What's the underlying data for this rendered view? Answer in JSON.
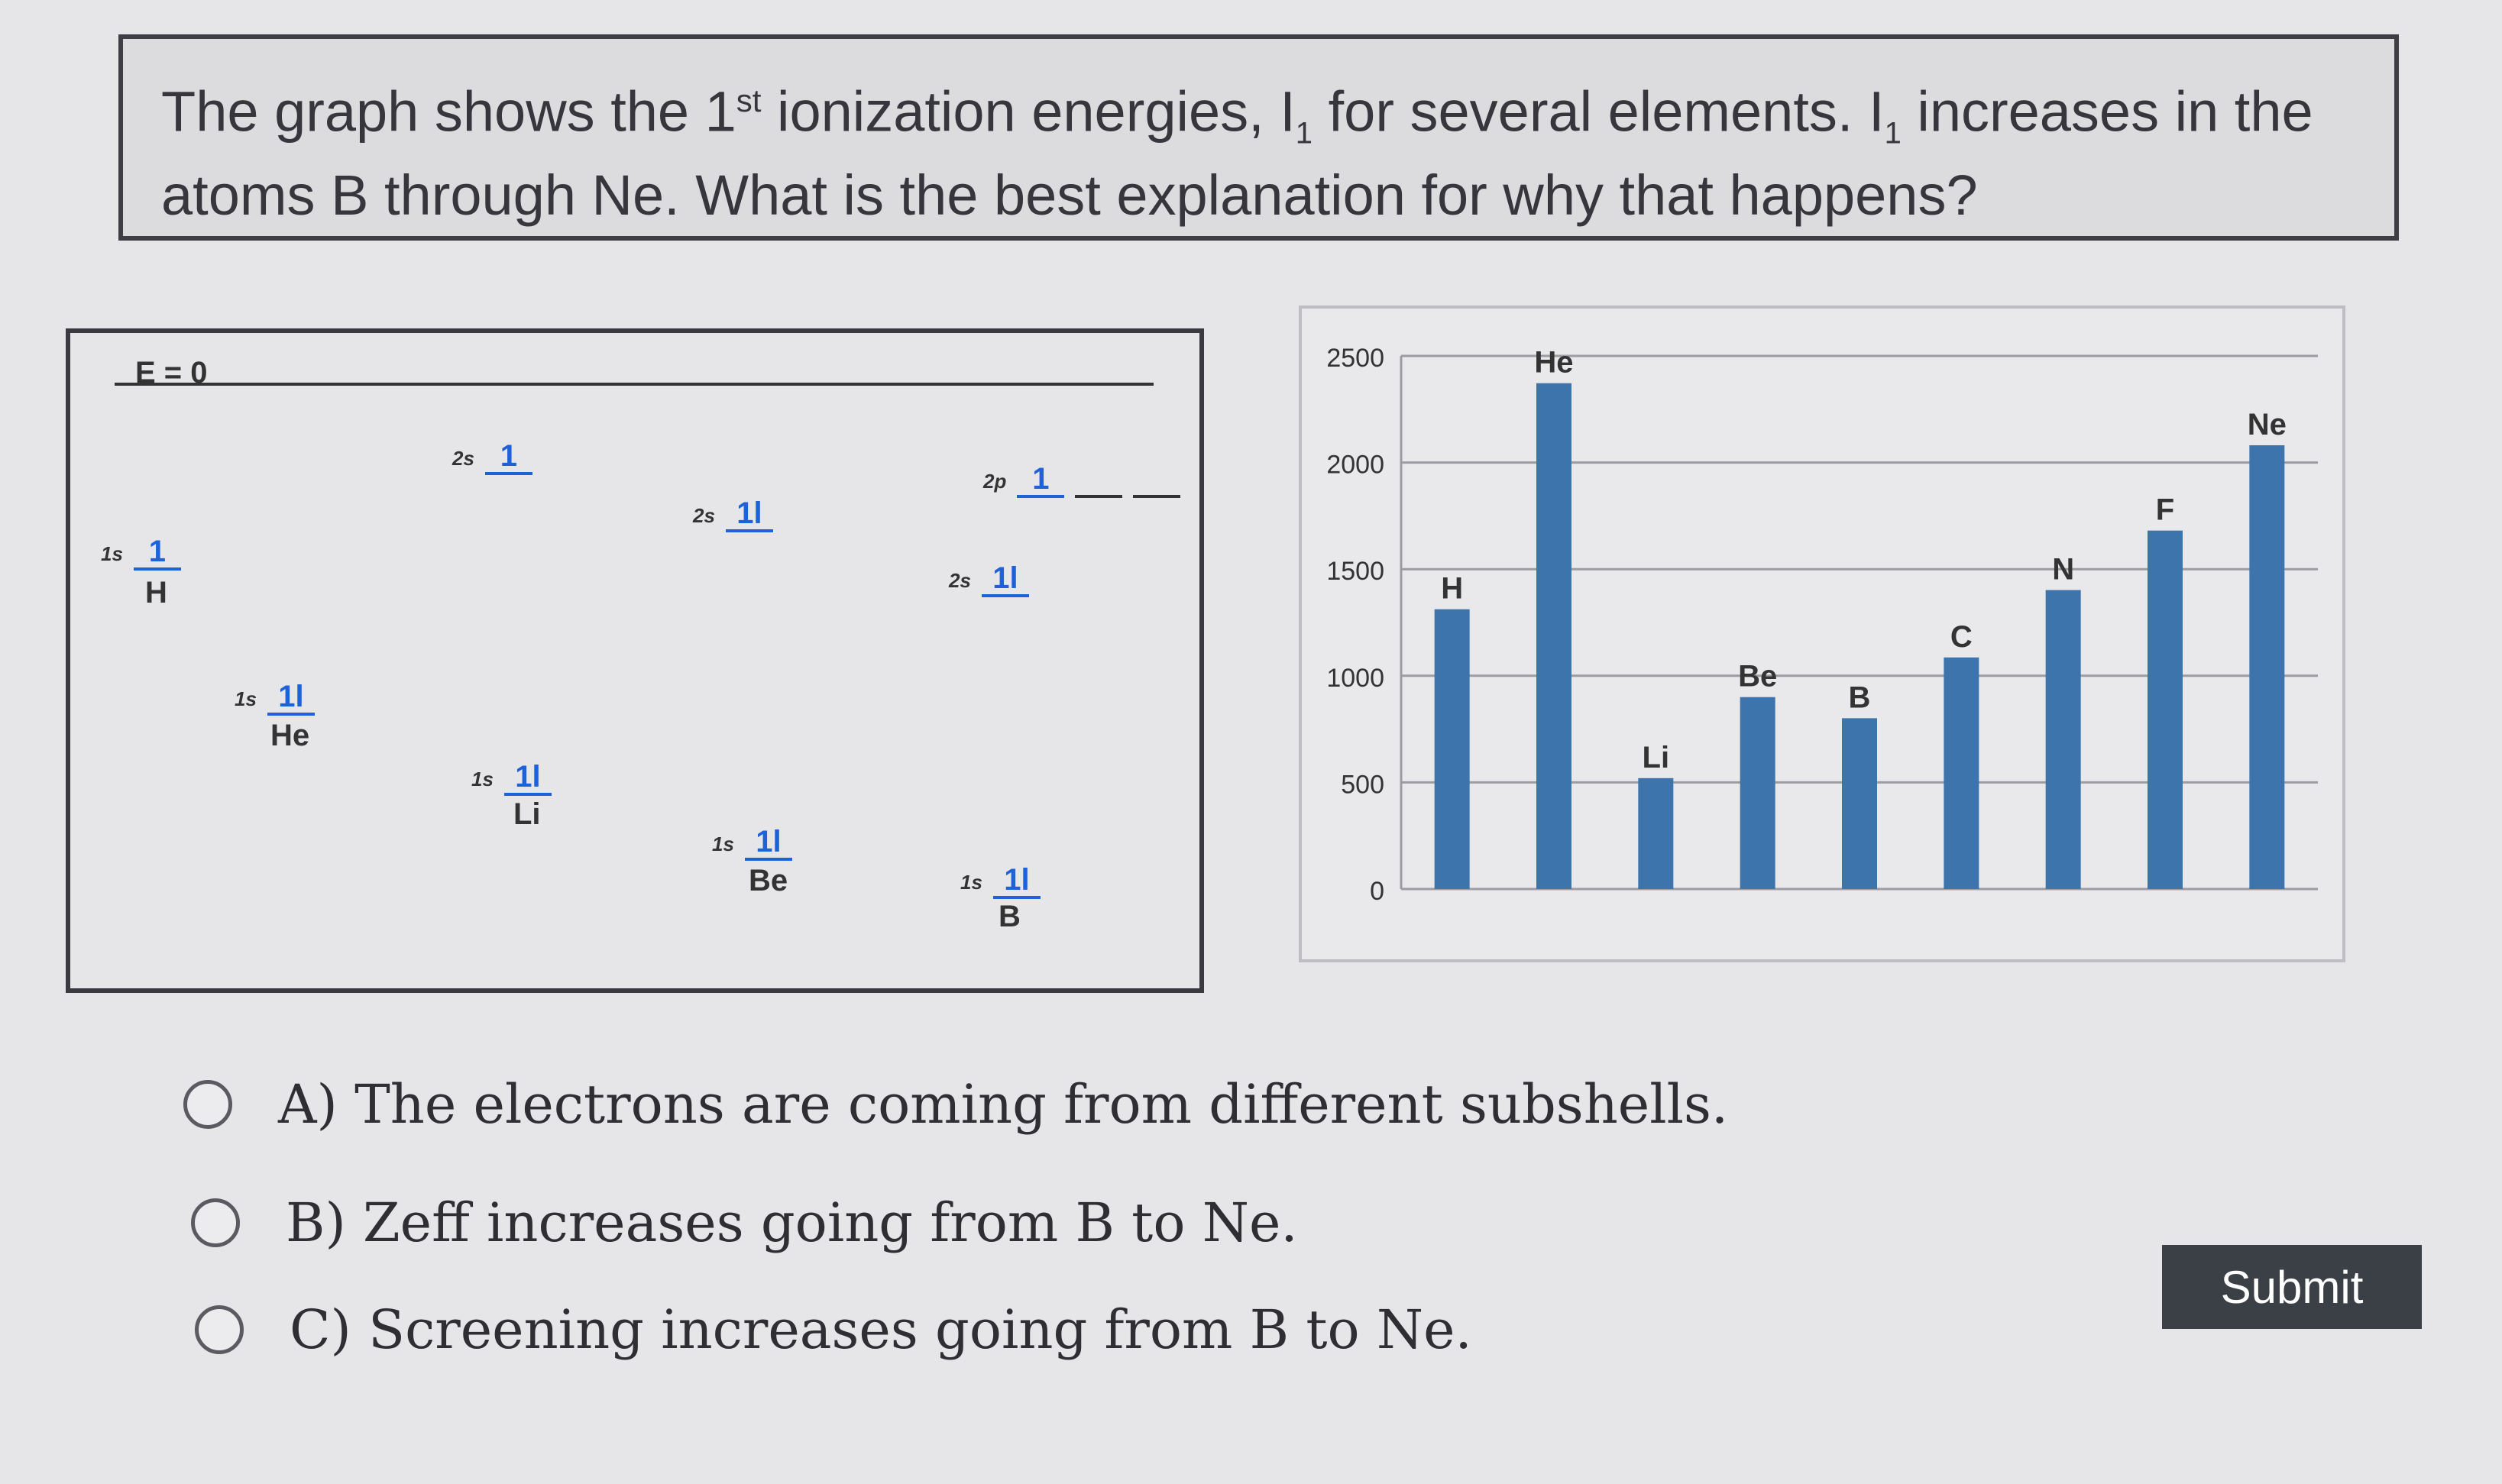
{
  "question": {
    "part1": "The graph shows the 1",
    "sup": "st",
    "part2": " ionization energies, I",
    "sub1": "1",
    "part3": " for several elements.  I",
    "sub2": "1",
    "part4": " increases in the",
    "line2": "atoms B through Ne.  What is the best explanation for why that happens?"
  },
  "diagram": {
    "e0_label": "E = 0",
    "up_arrow": "1",
    "pair_arrow": "1l",
    "orbitals": {
      "s1": "1s",
      "s2": "2s",
      "p2": "2p"
    },
    "elements": [
      "H",
      "He",
      "Li",
      "Be",
      "B"
    ]
  },
  "chart_data": {
    "type": "bar",
    "categories": [
      "H",
      "He",
      "Li",
      "Be",
      "B",
      "C",
      "N",
      "F",
      "Ne"
    ],
    "values": [
      1312,
      2372,
      520,
      900,
      801,
      1086,
      1402,
      1681,
      2081
    ],
    "yticks": [
      0,
      500,
      1000,
      1500,
      2000,
      2500
    ],
    "ylim": [
      0,
      2500
    ],
    "bar_color": "#3d74ac",
    "grid": true
  },
  "answers": [
    {
      "label": "A) The electrons are coming from different subshells."
    },
    {
      "label": "B) Zeff increases going from B to Ne."
    },
    {
      "label": "C) Screening increases going from B to Ne."
    }
  ],
  "submit_label": "Submit"
}
